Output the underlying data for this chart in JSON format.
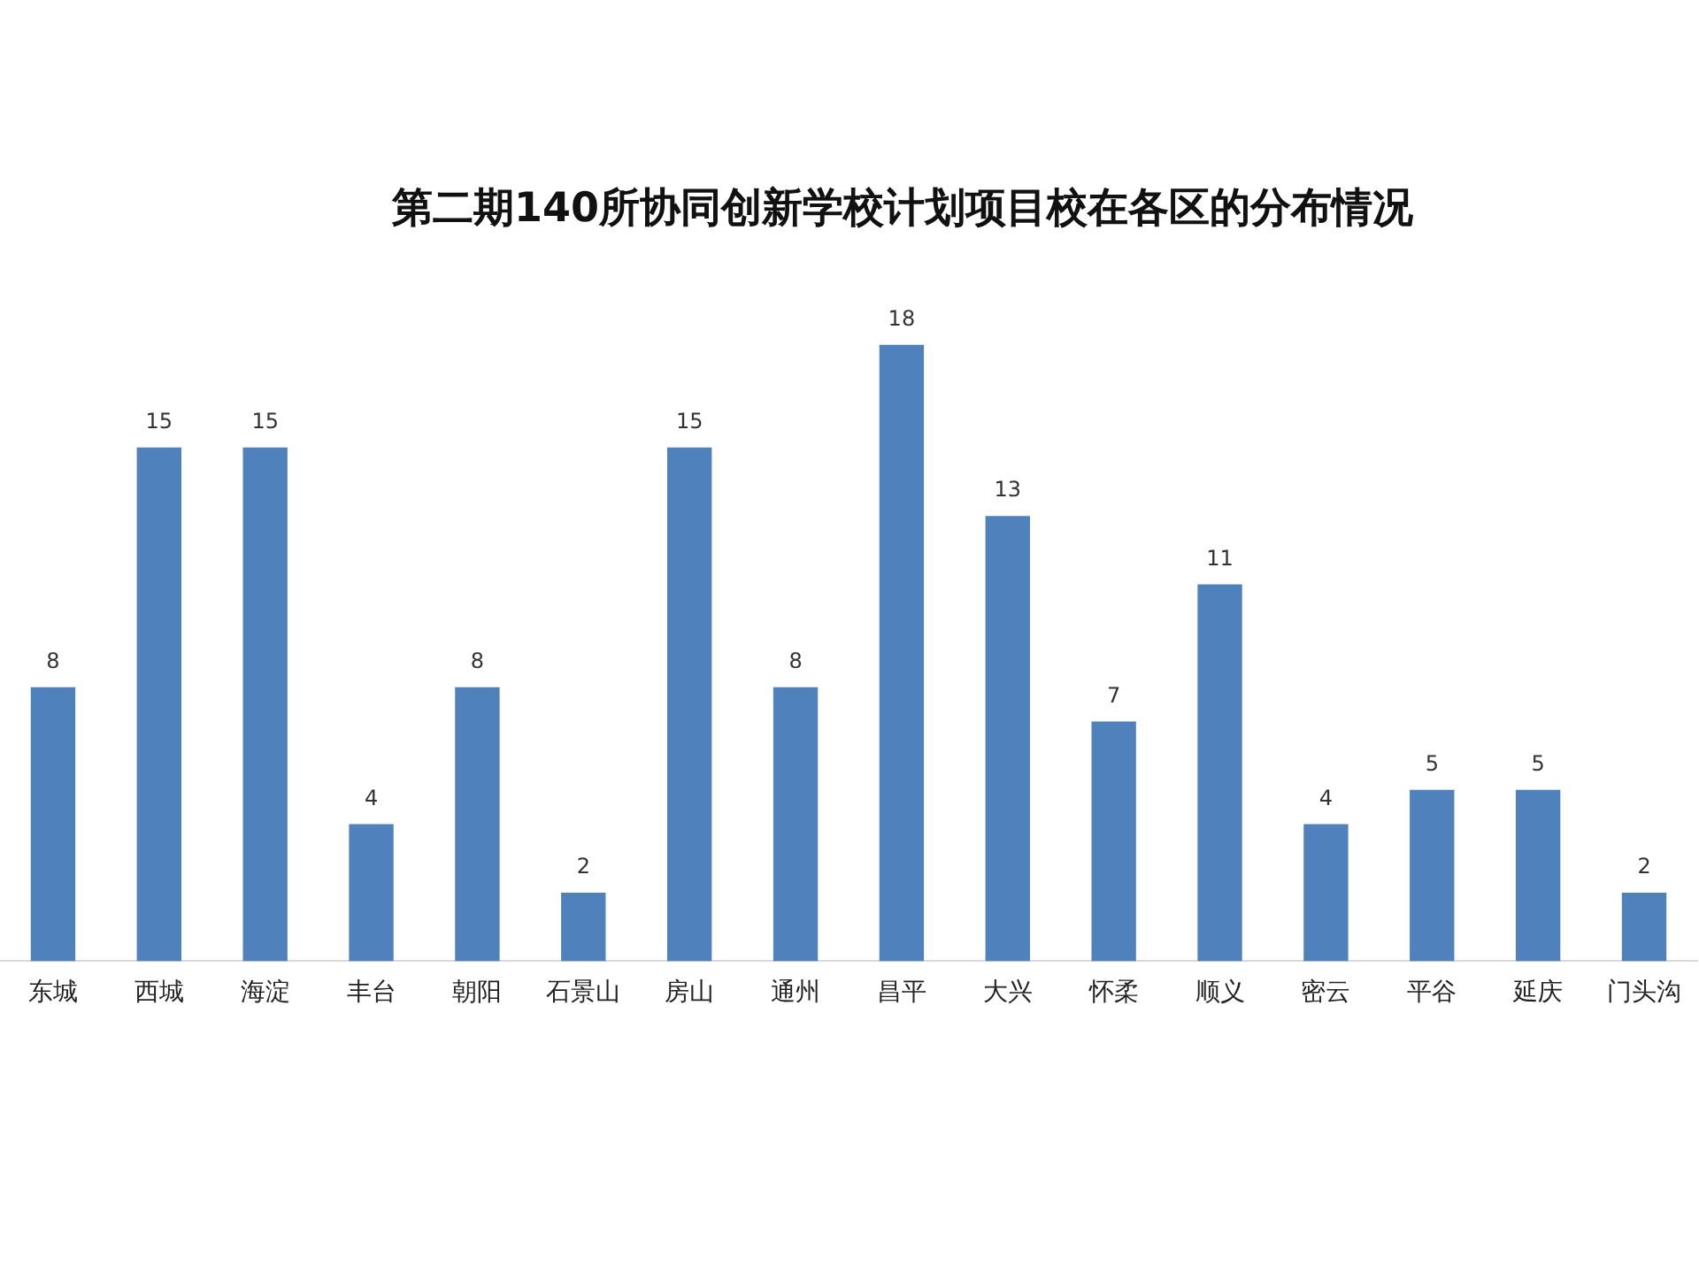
{
  "chart_data": {
    "type": "bar",
    "title": "第二期140所协同创新学校计划项目校在各区的分布情况",
    "categories": [
      "东城",
      "西城",
      "海淀",
      "丰台",
      "朝阳",
      "石景山",
      "房山",
      "通州",
      "昌平",
      "大兴",
      "怀柔",
      "顺义",
      "密云",
      "平谷",
      "延庆",
      "门头沟"
    ],
    "values": [
      8,
      15,
      15,
      4,
      8,
      2,
      15,
      8,
      18,
      13,
      7,
      11,
      4,
      5,
      5,
      2
    ],
    "color": "#4f81bd",
    "data_labels": true,
    "grid": false,
    "legend": false
  }
}
